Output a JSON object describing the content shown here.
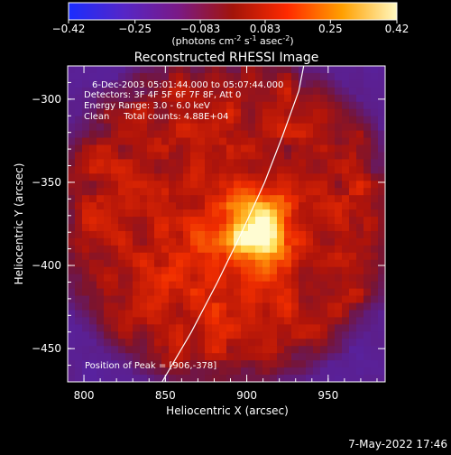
{
  "chart_data": {
    "type": "heatmap",
    "title": "Reconstructed RHESSI Image",
    "xlabel": "Heliocentric X (arcsec)",
    "ylabel": "Heliocentric Y (arcsec)",
    "xlim": [
      790,
      985
    ],
    "ylim": [
      -470,
      -280
    ],
    "xticks": [
      "800",
      "850",
      "900",
      "950"
    ],
    "yticks": [
      "-300",
      "-350",
      "-400",
      "-450"
    ],
    "colorbar": {
      "range": [
        -0.42,
        0.42
      ],
      "ticks": [
        "-0.42",
        "-0.25",
        "-0.083",
        "0.083",
        "0.25",
        "0.42"
      ],
      "units_text": "(photons cm",
      "units_sup1": "-2",
      "units_mid": " s",
      "units_sup2": "-1",
      "units_mid2": " asec",
      "units_sup3": "-2",
      "units_end": ")",
      "colors": [
        "#1a2dff",
        "#5526c8",
        "#7a1a86",
        "#a2140a",
        "#ff2a00",
        "#ffa000",
        "#fff8c0"
      ]
    },
    "annotations": [
      "6-Dec-2003 05:01:44.000 to 05:07:44.000",
      "Detectors: 3F 4F 5F 6F 7F 8F, Att 0",
      "Energy Range: 3.0 - 6.0 keV",
      "Clean     Total counts: 4.88E+04"
    ],
    "peak_text": "Position of Peak = [906,-378]",
    "peak": [
      906,
      -378
    ],
    "limb_points": [
      [
        848,
        -470
      ],
      [
        866,
        -440
      ],
      [
        882,
        -410
      ],
      [
        897,
        -380
      ],
      [
        911,
        -350
      ],
      [
        922,
        -322
      ],
      [
        932,
        -295
      ],
      [
        935,
        -280
      ]
    ]
  },
  "footer": {
    "date": "7-May-2022 17:46"
  }
}
